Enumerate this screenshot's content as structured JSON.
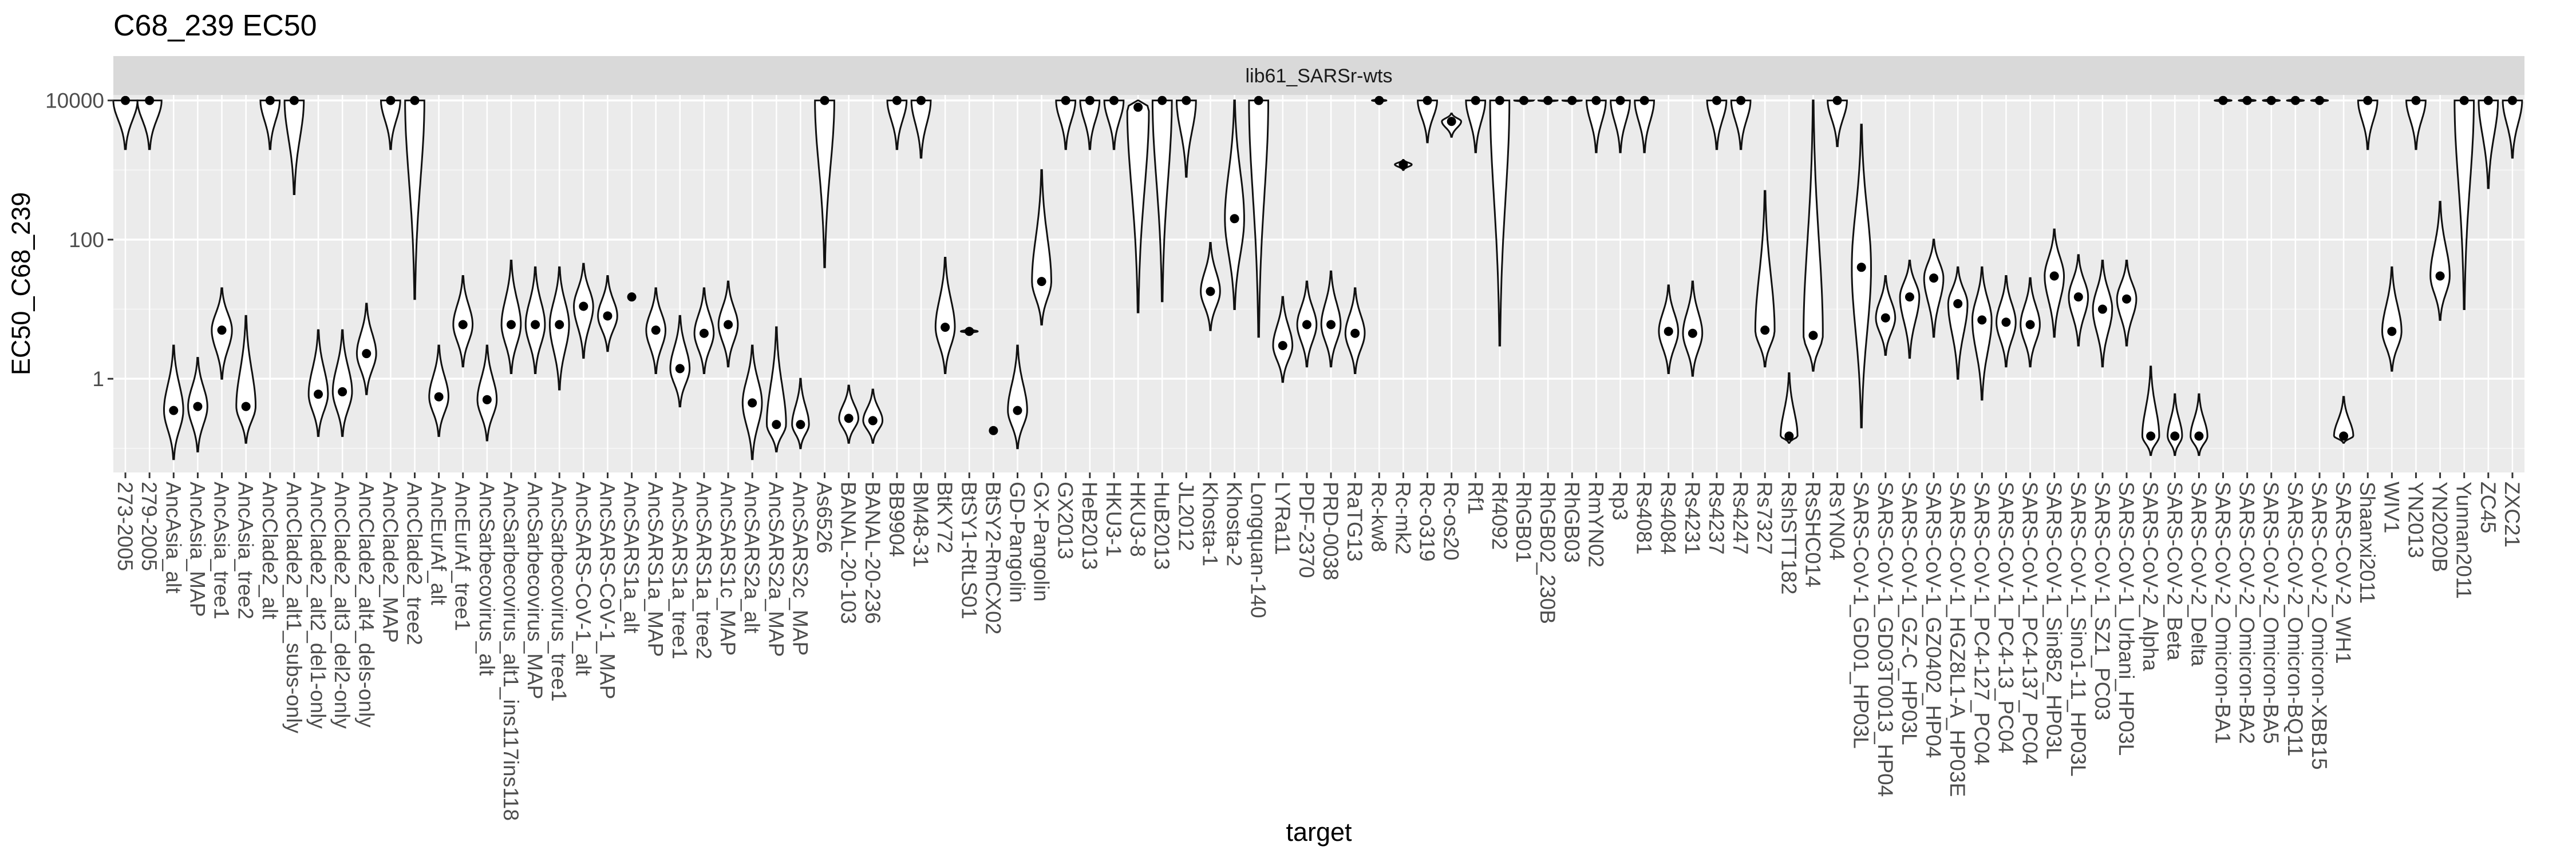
{
  "chart_data": {
    "type": "violin",
    "title": "C68_239 EC50",
    "facet_label": "lib61_SARSr-wts",
    "xlabel": "target",
    "ylabel": "EC50_C68_239",
    "y_scale": "log10",
    "y_ticks": [
      {
        "value": 1,
        "label": "1"
      },
      {
        "value": 100,
        "label": "100"
      },
      {
        "value": 10000,
        "label": "10000"
      }
    ],
    "ylim": [
      0.045,
      12000
    ],
    "grid": true,
    "categories": [
      {
        "name": "273-2005",
        "median": 10000,
        "low": 2000,
        "high": 10000,
        "maxw": 0.5
      },
      {
        "name": "279-2005",
        "median": 10000,
        "low": 2000,
        "high": 10000,
        "maxw": 0.5
      },
      {
        "name": "AncAsia_alt",
        "median": 0.35,
        "low": 0.07,
        "high": 3,
        "maxw": 0.4
      },
      {
        "name": "AncAsia_MAP",
        "median": 0.4,
        "low": 0.09,
        "high": 2,
        "maxw": 0.4
      },
      {
        "name": "AncAsia_tree1",
        "median": 5,
        "low": 1,
        "high": 20,
        "maxw": 0.42
      },
      {
        "name": "AncAsia_tree2",
        "median": 0.4,
        "low": 0.12,
        "high": 8,
        "maxw": 0.4
      },
      {
        "name": "AncClade2_alt",
        "median": 10000,
        "low": 2000,
        "high": 10000,
        "maxw": 0.4
      },
      {
        "name": "AncClade2_alt1_subs-only",
        "median": 10000,
        "low": 450,
        "high": 10000,
        "maxw": 0.4
      },
      {
        "name": "AncClade2_alt2_del1-only",
        "median": 0.6,
        "low": 0.15,
        "high": 5,
        "maxw": 0.4
      },
      {
        "name": "AncClade2_alt3_del2-only",
        "median": 0.65,
        "low": 0.15,
        "high": 5,
        "maxw": 0.4
      },
      {
        "name": "AncClade2_alt4_dels-only",
        "median": 2.3,
        "low": 0.6,
        "high": 12,
        "maxw": 0.4
      },
      {
        "name": "AncClade2_MAP",
        "median": 10000,
        "low": 2000,
        "high": 10000,
        "maxw": 0.4
      },
      {
        "name": "AncClade2_tree2",
        "median": 10000,
        "low": 14,
        "high": 10000,
        "maxw": 0.4
      },
      {
        "name": "AncEurAf_alt",
        "median": 0.55,
        "low": 0.15,
        "high": 3,
        "maxw": 0.4
      },
      {
        "name": "AncEurAf_tree1",
        "median": 6,
        "low": 1.5,
        "high": 30,
        "maxw": 0.4
      },
      {
        "name": "AncSarbecovirus_alt",
        "median": 0.5,
        "low": 0.13,
        "high": 3,
        "maxw": 0.4
      },
      {
        "name": "AncSarbecovirus_alt1_ins117ins118",
        "median": 6,
        "low": 1.2,
        "high": 50,
        "maxw": 0.4
      },
      {
        "name": "AncSarbecovirus_MAP",
        "median": 6,
        "low": 1.2,
        "high": 40,
        "maxw": 0.4
      },
      {
        "name": "AncSarbecovirus_tree1",
        "median": 6,
        "low": 0.7,
        "high": 40,
        "maxw": 0.4
      },
      {
        "name": "AncSARS-CoV-1_alt",
        "median": 11,
        "low": 2,
        "high": 45,
        "maxw": 0.4
      },
      {
        "name": "AncSARS-CoV-1_MAP",
        "median": 8,
        "low": 2.5,
        "high": 30,
        "maxw": 0.4
      },
      {
        "name": "AncSARS1a_alt",
        "median": 15,
        "low": 15,
        "high": 15,
        "maxw": 0
      },
      {
        "name": "AncSARS1a_MAP",
        "median": 5,
        "low": 1.2,
        "high": 20,
        "maxw": 0.4
      },
      {
        "name": "AncSARS1a_tree1",
        "median": 1.4,
        "low": 0.4,
        "high": 8,
        "maxw": 0.4
      },
      {
        "name": "AncSARS1a_tree2",
        "median": 4.5,
        "low": 1.2,
        "high": 20,
        "maxw": 0.4
      },
      {
        "name": "AncSARS1c_MAP",
        "median": 6,
        "low": 1.5,
        "high": 25,
        "maxw": 0.4
      },
      {
        "name": "AncSARS2a_alt",
        "median": 0.45,
        "low": 0.07,
        "high": 3,
        "maxw": 0.4
      },
      {
        "name": "AncSARS2a_MAP",
        "median": 0.22,
        "low": 0.09,
        "high": 5.5,
        "maxw": 0.4
      },
      {
        "name": "AncSARS2c_MAP",
        "median": 0.22,
        "low": 0.1,
        "high": 1,
        "maxw": 0.35
      },
      {
        "name": "As6526",
        "median": 10000,
        "low": 40,
        "high": 10000,
        "maxw": 0.4
      },
      {
        "name": "BANAL-20-103",
        "median": 0.27,
        "low": 0.12,
        "high": 0.8,
        "maxw": 0.4
      },
      {
        "name": "BANAL-20-236",
        "median": 0.25,
        "low": 0.12,
        "high": 0.7,
        "maxw": 0.4
      },
      {
        "name": "BB9904",
        "median": 10000,
        "low": 2000,
        "high": 10000,
        "maxw": 0.4
      },
      {
        "name": "BM48-31",
        "median": 10000,
        "low": 1500,
        "high": 10000,
        "maxw": 0.4
      },
      {
        "name": "BtKY72",
        "median": 5.5,
        "low": 1.2,
        "high": 55,
        "maxw": 0.4
      },
      {
        "name": "BtSY1-RtLS01",
        "median": 4.8,
        "low": 4.5,
        "high": 5.2,
        "maxw": 0.35
      },
      {
        "name": "BtSY2-RmCX02",
        "median": 0.18,
        "low": 0.18,
        "high": 0.18,
        "maxw": 0
      },
      {
        "name": "GD-Pangolin",
        "median": 0.35,
        "low": 0.1,
        "high": 3,
        "maxw": 0.4
      },
      {
        "name": "GX-Pangolin",
        "median": 25,
        "low": 6,
        "high": 1000,
        "maxw": 0.4
      },
      {
        "name": "GX2013",
        "median": 10000,
        "low": 2000,
        "high": 10000,
        "maxw": 0.4
      },
      {
        "name": "HeB2013",
        "median": 10000,
        "low": 2000,
        "high": 10000,
        "maxw": 0.4
      },
      {
        "name": "HKU3-1",
        "median": 10000,
        "low": 2000,
        "high": 10000,
        "maxw": 0.4
      },
      {
        "name": "HKU3-8",
        "median": 8000,
        "low": 9,
        "high": 10000,
        "maxw": 0.45
      },
      {
        "name": "HuB2013",
        "median": 10000,
        "low": 13,
        "high": 10000,
        "maxw": 0.4
      },
      {
        "name": "JL2012",
        "median": 10000,
        "low": 800,
        "high": 10000,
        "maxw": 0.4
      },
      {
        "name": "Khosta-1",
        "median": 18,
        "low": 5,
        "high": 90,
        "maxw": 0.4
      },
      {
        "name": "Khosta-2",
        "median": 200,
        "low": 10,
        "high": 10000,
        "maxw": 0.4
      },
      {
        "name": "Longquan-140",
        "median": 10000,
        "low": 4,
        "high": 10000,
        "maxw": 0.4
      },
      {
        "name": "LYRa11",
        "median": 3,
        "low": 0.9,
        "high": 15,
        "maxw": 0.4
      },
      {
        "name": "PDF-2370",
        "median": 6,
        "low": 1.5,
        "high": 25,
        "maxw": 0.4
      },
      {
        "name": "PRD-0038",
        "median": 6,
        "low": 1.5,
        "high": 35,
        "maxw": 0.4
      },
      {
        "name": "RaTG13",
        "median": 4.5,
        "low": 1.2,
        "high": 20,
        "maxw": 0.4
      },
      {
        "name": "Rc-kw8",
        "median": 10000,
        "low": 9500,
        "high": 10500,
        "maxw": 0.3
      },
      {
        "name": "Rc-mk2",
        "median": 1200,
        "low": 1000,
        "high": 1400,
        "maxw": 0.35
      },
      {
        "name": "Rc-o319",
        "median": 10000,
        "low": 2500,
        "high": 10000,
        "maxw": 0.4
      },
      {
        "name": "Rc-os20",
        "median": 5000,
        "low": 3000,
        "high": 6500,
        "maxw": 0.4
      },
      {
        "name": "Rf1",
        "median": 10000,
        "low": 1800,
        "high": 10000,
        "maxw": 0.4
      },
      {
        "name": "Rf4092",
        "median": 10000,
        "low": 3,
        "high": 10000,
        "maxw": 0.4
      },
      {
        "name": "RhGB01",
        "median": 10000,
        "low": 9500,
        "high": 10000,
        "maxw": 0.4
      },
      {
        "name": "RhGB02_230B",
        "median": 10000,
        "low": 9500,
        "high": 10000,
        "maxw": 0.4
      },
      {
        "name": "RhGB03",
        "median": 10000,
        "low": 9500,
        "high": 10000,
        "maxw": 0.4
      },
      {
        "name": "RmYN02",
        "median": 10000,
        "low": 1800,
        "high": 10000,
        "maxw": 0.4
      },
      {
        "name": "Rp3",
        "median": 10000,
        "low": 1800,
        "high": 10000,
        "maxw": 0.4
      },
      {
        "name": "Rs4081",
        "median": 10000,
        "low": 1800,
        "high": 10000,
        "maxw": 0.4
      },
      {
        "name": "Rs4084",
        "median": 4.8,
        "low": 1.2,
        "high": 22,
        "maxw": 0.4
      },
      {
        "name": "Rs4231",
        "median": 4.5,
        "low": 1.1,
        "high": 25,
        "maxw": 0.4
      },
      {
        "name": "Rs4237",
        "median": 10000,
        "low": 2000,
        "high": 10000,
        "maxw": 0.4
      },
      {
        "name": "Rs4247",
        "median": 10000,
        "low": 2000,
        "high": 10000,
        "maxw": 0.4
      },
      {
        "name": "Rs7327",
        "median": 5,
        "low": 1.5,
        "high": 500,
        "maxw": 0.4
      },
      {
        "name": "RshSTT182",
        "median": 0.15,
        "low": 0.12,
        "high": 1.2,
        "maxw": 0.35
      },
      {
        "name": "RsSHC014",
        "median": 4.2,
        "low": 1.3,
        "high": 10000,
        "maxw": 0.4
      },
      {
        "name": "RsYN04",
        "median": 10000,
        "low": 2200,
        "high": 10000,
        "maxw": 0.4
      },
      {
        "name": "SARS-CoV-1_GD01_HP03L",
        "median": 40,
        "low": 0.2,
        "high": 4500,
        "maxw": 0.4
      },
      {
        "name": "SARS-CoV-1_GD03T0013_HP04",
        "median": 7.5,
        "low": 2.2,
        "high": 30,
        "maxw": 0.4
      },
      {
        "name": "SARS-CoV-1_GZ-C_HP03L",
        "median": 15,
        "low": 2,
        "high": 50,
        "maxw": 0.4
      },
      {
        "name": "SARS-CoV-1_GZ0402_HP04",
        "median": 28,
        "low": 4,
        "high": 100,
        "maxw": 0.4
      },
      {
        "name": "SARS-CoV-1_HGZ8L1-A_HP03E",
        "median": 12,
        "low": 1,
        "high": 40,
        "maxw": 0.4
      },
      {
        "name": "SARS-CoV-1_PC4-127_PC04",
        "median": 7,
        "low": 0.5,
        "high": 40,
        "maxw": 0.4
      },
      {
        "name": "SARS-CoV-1_PC4-13_PC04",
        "median": 6.5,
        "low": 1.5,
        "high": 30,
        "maxw": 0.4
      },
      {
        "name": "SARS-CoV-1_PC4-137_PC04",
        "median": 6,
        "low": 1.5,
        "high": 28,
        "maxw": 0.4
      },
      {
        "name": "SARS-CoV-1_Sin852_HP03L",
        "median": 30,
        "low": 4,
        "high": 140,
        "maxw": 0.4
      },
      {
        "name": "SARS-CoV-1_Sino1-11_HP03L",
        "median": 15,
        "low": 3,
        "high": 60,
        "maxw": 0.4
      },
      {
        "name": "SARS-CoV-1_SZ1_PC03",
        "median": 10,
        "low": 1.5,
        "high": 50,
        "maxw": 0.4
      },
      {
        "name": "SARS-CoV-1_Urbani_HP03L",
        "median": 14,
        "low": 3,
        "high": 50,
        "maxw": 0.4
      },
      {
        "name": "SARS-CoV-2_Alpha",
        "median": 0.15,
        "low": 0.08,
        "high": 1.5,
        "maxw": 0.35
      },
      {
        "name": "SARS-CoV-2_Beta",
        "median": 0.15,
        "low": 0.08,
        "high": 0.6,
        "maxw": 0.3
      },
      {
        "name": "SARS-CoV-2_Delta",
        "median": 0.15,
        "low": 0.08,
        "high": 0.6,
        "maxw": 0.35
      },
      {
        "name": "SARS-CoV-2_Omicron-BA1",
        "median": 10000,
        "low": 9500,
        "high": 10500,
        "maxw": 0.35
      },
      {
        "name": "SARS-CoV-2_Omicron-BA2",
        "median": 10000,
        "low": 9500,
        "high": 10500,
        "maxw": 0.35
      },
      {
        "name": "SARS-CoV-2_Omicron-BA5",
        "median": 10000,
        "low": 9500,
        "high": 10500,
        "maxw": 0.35
      },
      {
        "name": "SARS-CoV-2_Omicron-BQ11",
        "median": 10000,
        "low": 9500,
        "high": 10500,
        "maxw": 0.35
      },
      {
        "name": "SARS-CoV-2_Omicron-XBB15",
        "median": 10000,
        "low": 9500,
        "high": 10500,
        "maxw": 0.35
      },
      {
        "name": "SARS-CoV-2_WH1",
        "median": 0.15,
        "low": 0.12,
        "high": 0.55,
        "maxw": 0.4
      },
      {
        "name": "Shaanxi2011",
        "median": 10000,
        "low": 2000,
        "high": 10000,
        "maxw": 0.4
      },
      {
        "name": "WIV1",
        "median": 4.8,
        "low": 1.3,
        "high": 40,
        "maxw": 0.4
      },
      {
        "name": "YN2013",
        "median": 10000,
        "low": 2000,
        "high": 10000,
        "maxw": 0.4
      },
      {
        "name": "YN2020B",
        "median": 30,
        "low": 7,
        "high": 350,
        "maxw": 0.4
      },
      {
        "name": "Yunnan2011",
        "median": 10000,
        "low": 10,
        "high": 10000,
        "maxw": 0.4
      },
      {
        "name": "ZC45",
        "median": 10000,
        "low": 550,
        "high": 10000,
        "maxw": 0.4
      },
      {
        "name": "ZXC21",
        "median": 10000,
        "low": 1500,
        "high": 10000,
        "maxw": 0.4
      }
    ]
  }
}
